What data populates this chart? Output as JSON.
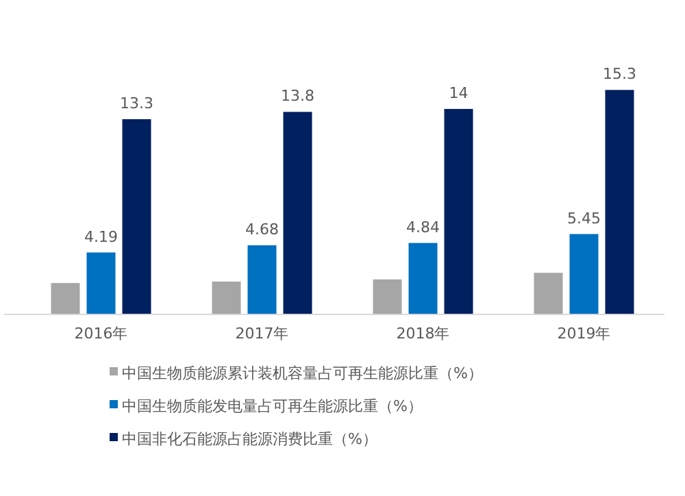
{
  "chart_data": {
    "type": "bar",
    "categories": [
      "2016年",
      "2017年",
      "2018年",
      "2019年"
    ],
    "series": [
      {
        "name": "中国生物质能源累计装机容量占可再生能源比重（%）",
        "color": "#a6a6a6",
        "values": [
          2.1,
          2.2,
          2.35,
          2.8
        ],
        "value_labels": [
          null,
          null,
          null,
          null
        ]
      },
      {
        "name": "中国生物质能发电量占可再生能源比重（%）",
        "color": "#0070c0",
        "values": [
          4.19,
          4.68,
          4.84,
          5.45
        ],
        "value_labels": [
          "4.19",
          "4.68",
          "4.84",
          "5.45"
        ]
      },
      {
        "name": "中国非化石能源占能源消费比重（%）",
        "color": "#002060",
        "values": [
          13.3,
          13.8,
          14,
          15.3
        ],
        "value_labels": [
          "13.3",
          "13.8",
          "14",
          "15.3"
        ]
      }
    ],
    "legend": "bottom"
  }
}
